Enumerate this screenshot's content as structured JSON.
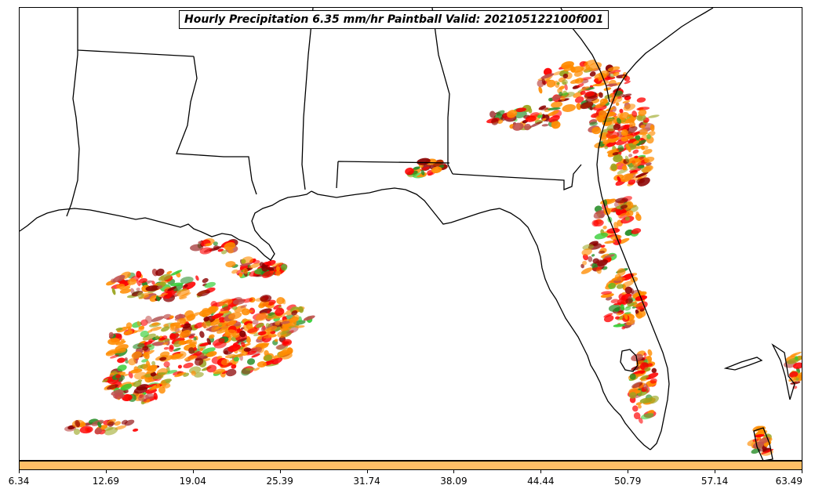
{
  "title": "Hourly Precipitation 6.35 mm/hr Paintball Valid: 202105122100f001",
  "colorbar": {
    "fill_color": "#ffbf66",
    "tick_labels": [
      "6.34",
      "12.69",
      "19.04",
      "25.39",
      "31.74",
      "38.09",
      "44.44",
      "50.79",
      "57.14",
      "63.49"
    ]
  },
  "palette": [
    "#ff0000",
    "#ff8c00",
    "#8b0000",
    "#228b22",
    "#32cd32",
    "#9aa51f",
    "#c0504d"
  ]
}
